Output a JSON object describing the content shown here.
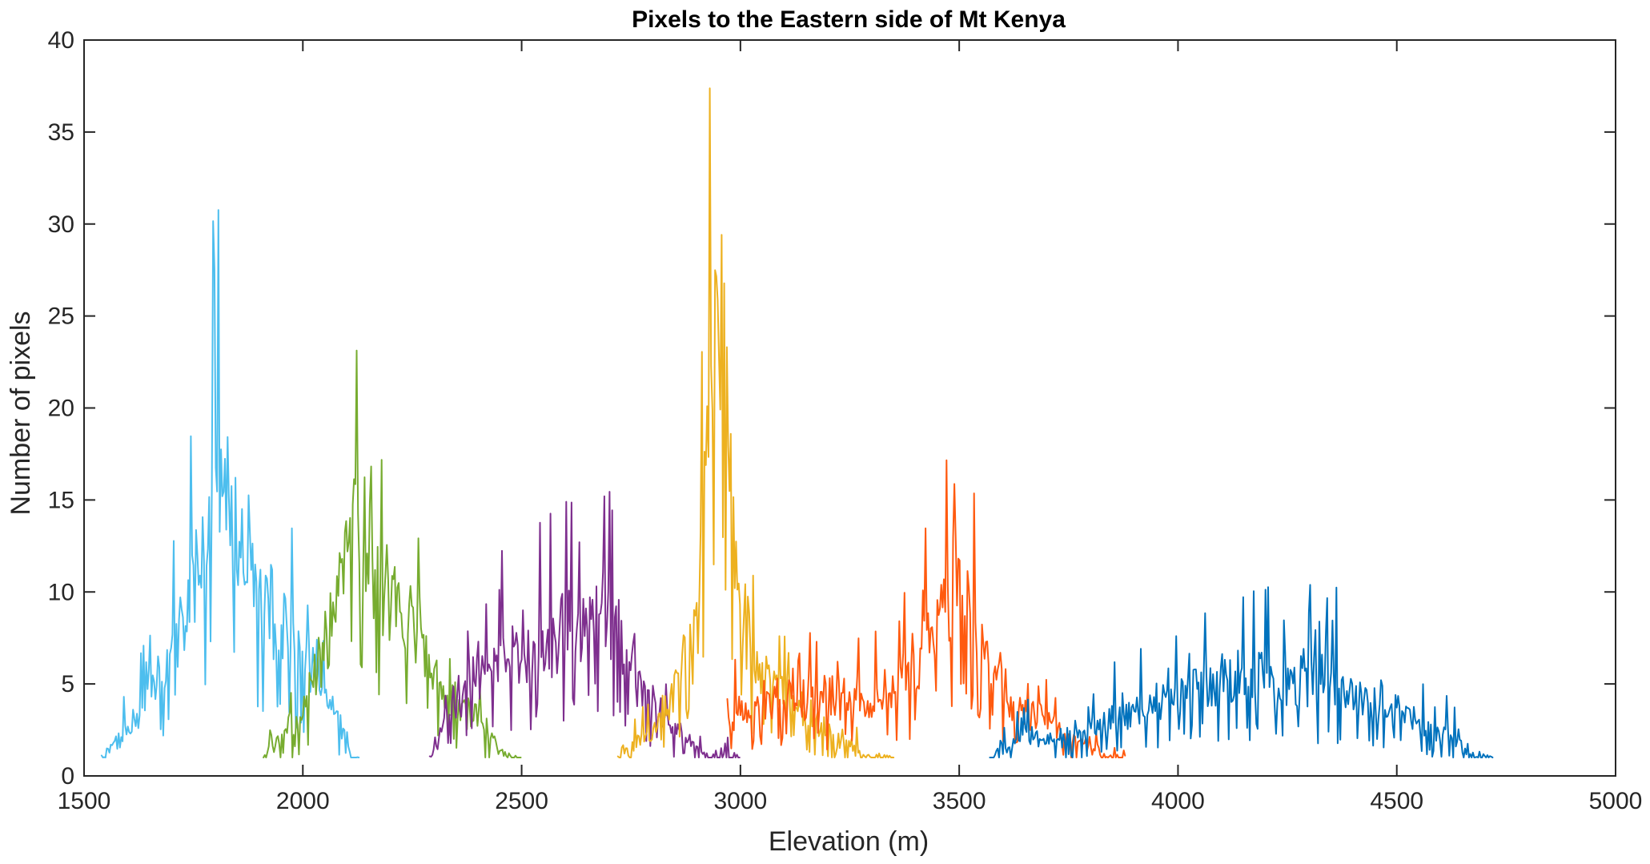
{
  "chart_data": {
    "type": "line",
    "title": "Pixels to the Eastern side of Mt Kenya",
    "xlabel": "Elevation (m)",
    "ylabel": "Number of pixels",
    "xlim": [
      1500,
      5000
    ],
    "ylim": [
      0,
      40
    ],
    "xticks": [
      1500,
      2000,
      2500,
      3000,
      3500,
      4000,
      4500,
      5000
    ],
    "yticks": [
      0,
      5,
      10,
      15,
      20,
      25,
      30,
      35,
      40
    ],
    "grid": false,
    "series": [
      {
        "name": "cyan",
        "color": "#4dbeee",
        "x": [
          1540,
          1580,
          1620,
          1650,
          1680,
          1720,
          1760,
          1790,
          1810,
          1830,
          1860,
          1900,
          1940,
          1980,
          2020,
          2060,
          2080,
          2100,
          2110,
          2130
        ],
        "y": [
          1,
          2,
          3,
          5,
          6,
          8,
          11,
          14,
          16,
          15,
          12,
          10,
          8,
          7,
          6,
          4,
          3,
          2,
          1,
          1
        ]
      },
      {
        "name": "green",
        "color": "#77ac30",
        "x": [
          1910,
          1950,
          1990,
          2030,
          2060,
          2090,
          2120,
          2150,
          2190,
          2230,
          2270,
          2310,
          2350,
          2390,
          2430,
          2470,
          2500
        ],
        "y": [
          1,
          2,
          3,
          5,
          8,
          12,
          13,
          11,
          10,
          9,
          7,
          5,
          4,
          3,
          2,
          1,
          1
        ]
      },
      {
        "name": "purple",
        "color": "#7e2f8e",
        "x": [
          2290,
          2330,
          2380,
          2430,
          2480,
          2530,
          2580,
          2630,
          2680,
          2720,
          2760,
          2800,
          2840,
          2880,
          2920,
          2960,
          3000
        ],
        "y": [
          1,
          3,
          5,
          6,
          6,
          7,
          7,
          8,
          9,
          8,
          5,
          4,
          3,
          2,
          1,
          1,
          1
        ]
      },
      {
        "name": "yellow",
        "color": "#edb120",
        "x": [
          2720,
          2780,
          2840,
          2880,
          2910,
          2930,
          2945,
          2960,
          2980,
          3000,
          3030,
          3070,
          3110,
          3160,
          3220,
          3290,
          3350
        ],
        "y": [
          1,
          2,
          4,
          7,
          13,
          22,
          30,
          24,
          15,
          9,
          6,
          5,
          4,
          3,
          2,
          1,
          1
        ]
      },
      {
        "name": "orange",
        "color": "#ff5a0f",
        "x": [
          2970,
          3050,
          3130,
          3210,
          3290,
          3360,
          3410,
          3460,
          3500,
          3530,
          3550,
          3580,
          3620,
          3680,
          3760,
          3840,
          3880
        ],
        "y": [
          3,
          4,
          4,
          4,
          4,
          5,
          6,
          9,
          10,
          9,
          8,
          6,
          4,
          3,
          2,
          1,
          1
        ]
      },
      {
        "name": "blue",
        "color": "#0072bd",
        "x": [
          3570,
          3650,
          3750,
          3850,
          3950,
          4050,
          4150,
          4250,
          4350,
          4450,
          4550,
          4620,
          4680,
          4720
        ],
        "y": [
          1,
          2,
          2,
          3,
          4,
          5,
          5,
          5,
          5,
          4,
          3,
          2,
          1,
          1
        ]
      }
    ]
  }
}
